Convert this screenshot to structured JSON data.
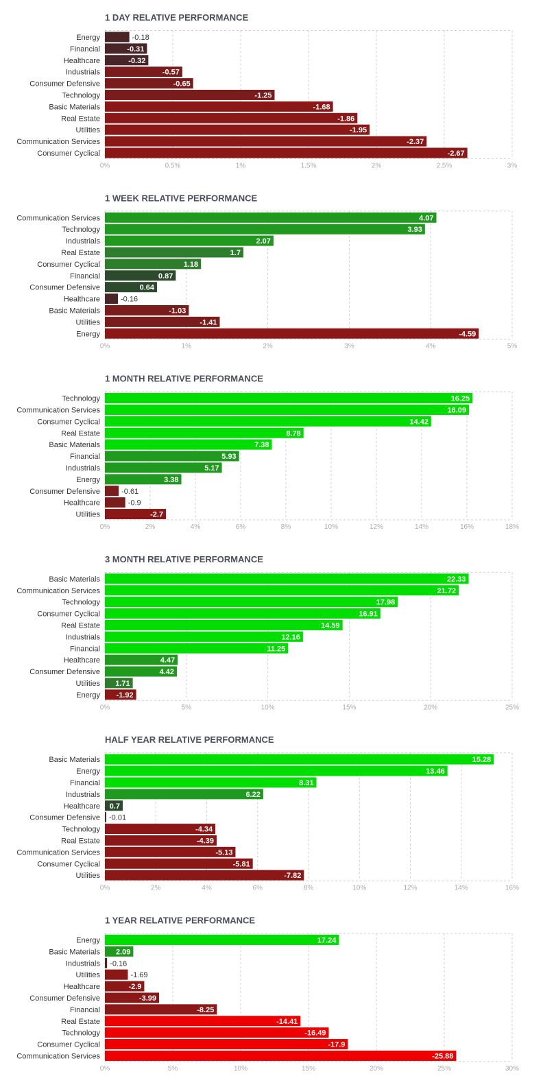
{
  "chart_data": [
    {
      "type": "bar",
      "orientation": "horizontal",
      "title": "1 DAY RELATIVE PERFORMANCE",
      "categories": [
        "Energy",
        "Financial",
        "Healthcare",
        "Industrials",
        "Consumer Defensive",
        "Technology",
        "Basic Materials",
        "Real Estate",
        "Utilities",
        "Communication Services",
        "Consumer Cyclical"
      ],
      "values": [
        -0.18,
        -0.31,
        -0.32,
        -0.57,
        -0.65,
        -1.25,
        -1.68,
        -1.86,
        -1.95,
        -2.37,
        -2.67
      ],
      "value_labels": [
        "-0.18",
        "-0.31",
        "-0.32",
        "-0.57",
        "-0.65",
        "-1.25",
        "-1.68",
        "-1.86",
        "-1.95",
        "-2.37",
        "-2.67"
      ],
      "xlim": [
        0,
        3
      ],
      "xticks": [
        "0%",
        "0.5%",
        "1%",
        "1.5%",
        "2%",
        "2.5%",
        "3%"
      ],
      "grid": true
    },
    {
      "type": "bar",
      "orientation": "horizontal",
      "title": "1 WEEK RELATIVE PERFORMANCE",
      "categories": [
        "Communication Services",
        "Technology",
        "Industrials",
        "Real Estate",
        "Consumer Cyclical",
        "Financial",
        "Consumer Defensive",
        "Healthcare",
        "Basic Materials",
        "Utilities",
        "Energy"
      ],
      "values": [
        4.07,
        3.93,
        2.07,
        1.7,
        1.18,
        0.87,
        0.64,
        -0.16,
        -1.03,
        -1.41,
        -4.59
      ],
      "value_labels": [
        "4.07",
        "3.93",
        "2.07",
        "1.7",
        "1.18",
        "0.87",
        "0.64",
        "-0.16",
        "-1.03",
        "-1.41",
        "-4.59"
      ],
      "xlim": [
        0,
        5
      ],
      "xticks": [
        "0%",
        "1%",
        "2%",
        "3%",
        "4%",
        "5%"
      ],
      "grid": true
    },
    {
      "type": "bar",
      "orientation": "horizontal",
      "title": "1 MONTH RELATIVE PERFORMANCE",
      "categories": [
        "Technology",
        "Communication Services",
        "Consumer Cyclical",
        "Real Estate",
        "Basic Materials",
        "Financial",
        "Industrials",
        "Energy",
        "Consumer Defensive",
        "Healthcare",
        "Utilities"
      ],
      "values": [
        16.25,
        16.09,
        14.42,
        8.78,
        7.38,
        5.93,
        5.17,
        3.38,
        -0.61,
        -0.9,
        -2.7
      ],
      "value_labels": [
        "16.25",
        "16.09",
        "14.42",
        "8.78",
        "7.38",
        "5.93",
        "5.17",
        "3.38",
        "-0.61",
        "-0.9",
        "-2.7"
      ],
      "xlim": [
        0,
        18
      ],
      "xticks": [
        "0%",
        "2%",
        "4%",
        "6%",
        "8%",
        "10%",
        "12%",
        "14%",
        "16%",
        "18%"
      ],
      "grid": true
    },
    {
      "type": "bar",
      "orientation": "horizontal",
      "title": "3 MONTH RELATIVE PERFORMANCE",
      "categories": [
        "Basic Materials",
        "Communication Services",
        "Technology",
        "Consumer Cyclical",
        "Real Estate",
        "Industrials",
        "Financial",
        "Healthcare",
        "Consumer Defensive",
        "Utilities",
        "Energy"
      ],
      "values": [
        22.33,
        21.72,
        17.98,
        16.91,
        14.59,
        12.16,
        11.25,
        4.47,
        4.42,
        1.71,
        -1.92
      ],
      "value_labels": [
        "22.33",
        "21.72",
        "17.98",
        "16.91",
        "14.59",
        "12.16",
        "11.25",
        "4.47",
        "4.42",
        "1.71",
        "-1.92"
      ],
      "xlim": [
        0,
        25
      ],
      "xticks": [
        "0%",
        "5%",
        "10%",
        "15%",
        "20%",
        "25%"
      ],
      "grid": true
    },
    {
      "type": "bar",
      "orientation": "horizontal",
      "title": "HALF YEAR RELATIVE PERFORMANCE",
      "categories": [
        "Basic Materials",
        "Energy",
        "Financial",
        "Industrials",
        "Healthcare",
        "Consumer Defensive",
        "Technology",
        "Real Estate",
        "Communication Services",
        "Consumer Cyclical",
        "Utilities"
      ],
      "values": [
        15.28,
        13.46,
        8.31,
        6.22,
        0.7,
        -0.01,
        -4.34,
        -4.39,
        -5.13,
        -5.81,
        -7.82
      ],
      "value_labels": [
        "15.28",
        "13.46",
        "8.31",
        "6.22",
        "0.7",
        "-0.01",
        "-4.34",
        "-4.39",
        "-5.13",
        "-5.81",
        "-7.82"
      ],
      "xlim": [
        0,
        16
      ],
      "xticks": [
        "0%",
        "2%",
        "4%",
        "6%",
        "8%",
        "10%",
        "12%",
        "14%",
        "16%"
      ],
      "grid": true
    },
    {
      "type": "bar",
      "orientation": "horizontal",
      "title": "1 YEAR RELATIVE PERFORMANCE",
      "categories": [
        "Energy",
        "Basic Materials",
        "Industrials",
        "Utilities",
        "Healthcare",
        "Consumer Defensive",
        "Financial",
        "Real Estate",
        "Technology",
        "Consumer Cyclical",
        "Communication Services"
      ],
      "values": [
        17.24,
        2.09,
        -0.16,
        -1.69,
        -2.9,
        -3.99,
        -8.25,
        -14.41,
        -16.49,
        -17.9,
        -25.88
      ],
      "value_labels": [
        "17.24",
        "2.09",
        "-0.16",
        "-1.69",
        "-2.9",
        "-3.99",
        "-8.25",
        "-14.41",
        "-16.49",
        "-17.9",
        "-25.88"
      ],
      "xlim": [
        0,
        30
      ],
      "xticks": [
        "0%",
        "5%",
        "10%",
        "15%",
        "20%",
        "25%",
        "30%"
      ],
      "grid": true
    }
  ]
}
